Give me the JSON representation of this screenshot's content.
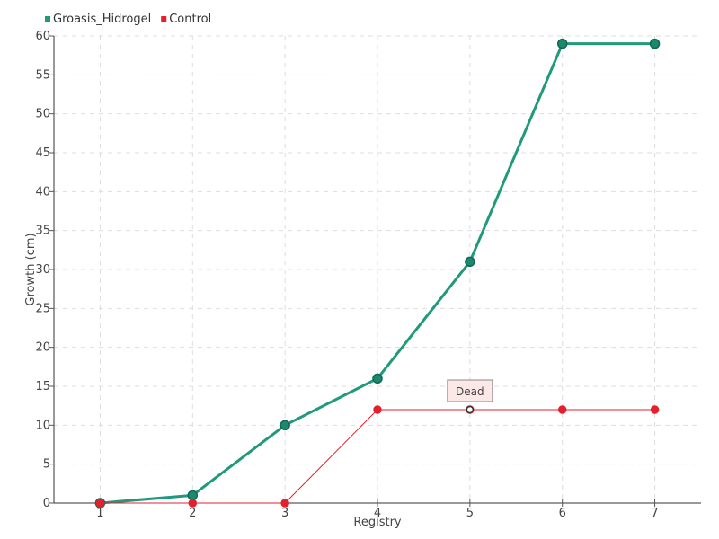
{
  "chart_data": {
    "type": "line",
    "xlabel": "Registry",
    "ylabel": "Growth (cm)",
    "x": [
      1,
      2,
      3,
      4,
      5,
      6,
      7
    ],
    "ylim": [
      0,
      60
    ],
    "y_ticks": [
      0,
      5,
      10,
      15,
      20,
      25,
      30,
      35,
      40,
      45,
      50,
      55,
      60
    ],
    "grid": true,
    "legend_position": "top-left",
    "series": [
      {
        "name": "Groasis_Hidrogel",
        "color": "#1f9a7a",
        "values": [
          0,
          1,
          10,
          16,
          31,
          59,
          59
        ]
      },
      {
        "name": "Control",
        "color": "#e3202c",
        "values": [
          0,
          0,
          0,
          12,
          12,
          12,
          12
        ]
      }
    ],
    "annotation": {
      "text": "Dead",
      "series": "Control",
      "x": 5,
      "y": 12
    }
  }
}
